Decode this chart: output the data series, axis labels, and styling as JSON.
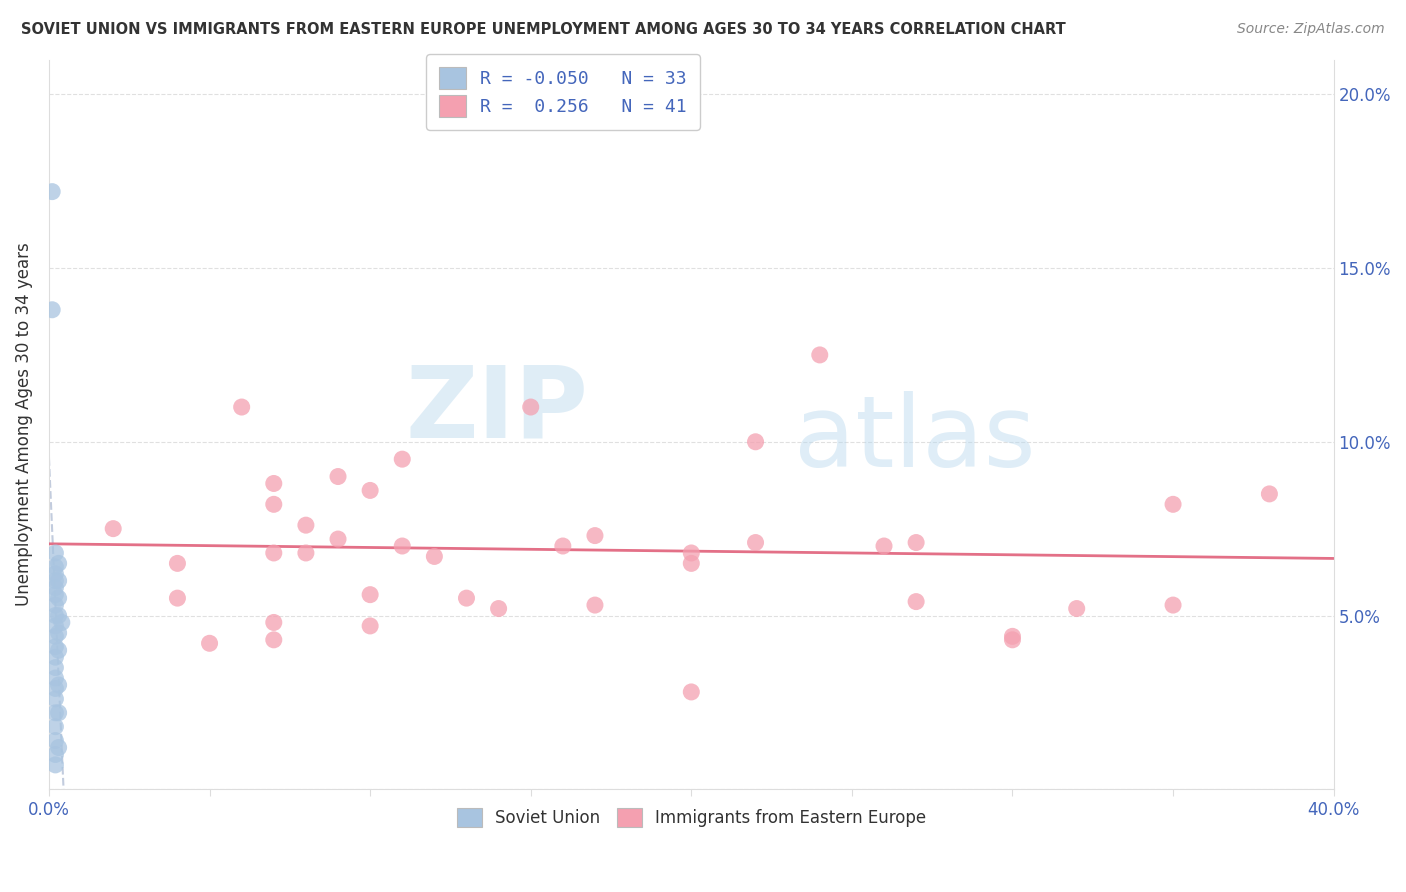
{
  "title": "SOVIET UNION VS IMMIGRANTS FROM EASTERN EUROPE UNEMPLOYMENT AMONG AGES 30 TO 34 YEARS CORRELATION CHART",
  "source": "Source: ZipAtlas.com",
  "ylabel": "Unemployment Among Ages 30 to 34 years",
  "xlim": [
    0.0,
    0.4
  ],
  "ylim": [
    0.0,
    0.21
  ],
  "xticks": [
    0.0,
    0.05,
    0.1,
    0.15,
    0.2,
    0.25,
    0.3,
    0.35,
    0.4
  ],
  "yticks_right": [
    0.05,
    0.1,
    0.15,
    0.2
  ],
  "soviet_color": "#a8c4e0",
  "eastern_color": "#f4a0b0",
  "soviet_line_color": "#9aaac8",
  "eastern_line_color": "#e0607a",
  "soviet_R": -0.05,
  "soviet_N": 33,
  "eastern_R": 0.256,
  "eastern_N": 41,
  "watermark_zip": "ZIP",
  "watermark_atlas": "atlas",
  "grid_color": "#dddddd",
  "tick_color": "#4466bb",
  "soviet_points": [
    [
      0.001,
      0.172
    ],
    [
      0.001,
      0.138
    ],
    [
      0.002,
      0.068
    ],
    [
      0.002,
      0.064
    ],
    [
      0.002,
      0.062
    ],
    [
      0.002,
      0.06
    ],
    [
      0.002,
      0.058
    ],
    [
      0.002,
      0.056
    ],
    [
      0.002,
      0.053
    ],
    [
      0.002,
      0.05
    ],
    [
      0.002,
      0.047
    ],
    [
      0.002,
      0.044
    ],
    [
      0.002,
      0.041
    ],
    [
      0.002,
      0.038
    ],
    [
      0.002,
      0.035
    ],
    [
      0.002,
      0.032
    ],
    [
      0.002,
      0.029
    ],
    [
      0.002,
      0.026
    ],
    [
      0.002,
      0.022
    ],
    [
      0.002,
      0.018
    ],
    [
      0.002,
      0.014
    ],
    [
      0.002,
      0.01
    ],
    [
      0.002,
      0.007
    ],
    [
      0.003,
      0.065
    ],
    [
      0.003,
      0.06
    ],
    [
      0.003,
      0.055
    ],
    [
      0.003,
      0.05
    ],
    [
      0.003,
      0.045
    ],
    [
      0.003,
      0.04
    ],
    [
      0.003,
      0.03
    ],
    [
      0.003,
      0.022
    ],
    [
      0.003,
      0.012
    ],
    [
      0.004,
      0.048
    ]
  ],
  "eastern_points": [
    [
      0.02,
      0.075
    ],
    [
      0.04,
      0.065
    ],
    [
      0.04,
      0.055
    ],
    [
      0.05,
      0.042
    ],
    [
      0.06,
      0.11
    ],
    [
      0.07,
      0.088
    ],
    [
      0.07,
      0.082
    ],
    [
      0.07,
      0.068
    ],
    [
      0.07,
      0.048
    ],
    [
      0.07,
      0.043
    ],
    [
      0.08,
      0.076
    ],
    [
      0.08,
      0.068
    ],
    [
      0.09,
      0.09
    ],
    [
      0.09,
      0.072
    ],
    [
      0.1,
      0.086
    ],
    [
      0.1,
      0.056
    ],
    [
      0.1,
      0.047
    ],
    [
      0.11,
      0.095
    ],
    [
      0.11,
      0.07
    ],
    [
      0.12,
      0.067
    ],
    [
      0.13,
      0.055
    ],
    [
      0.14,
      0.052
    ],
    [
      0.15,
      0.11
    ],
    [
      0.16,
      0.07
    ],
    [
      0.17,
      0.073
    ],
    [
      0.17,
      0.053
    ],
    [
      0.2,
      0.068
    ],
    [
      0.2,
      0.065
    ],
    [
      0.2,
      0.028
    ],
    [
      0.22,
      0.1
    ],
    [
      0.22,
      0.071
    ],
    [
      0.24,
      0.125
    ],
    [
      0.26,
      0.07
    ],
    [
      0.27,
      0.071
    ],
    [
      0.27,
      0.054
    ],
    [
      0.3,
      0.044
    ],
    [
      0.3,
      0.043
    ],
    [
      0.32,
      0.052
    ],
    [
      0.35,
      0.082
    ],
    [
      0.35,
      0.053
    ],
    [
      0.38,
      0.085
    ]
  ]
}
